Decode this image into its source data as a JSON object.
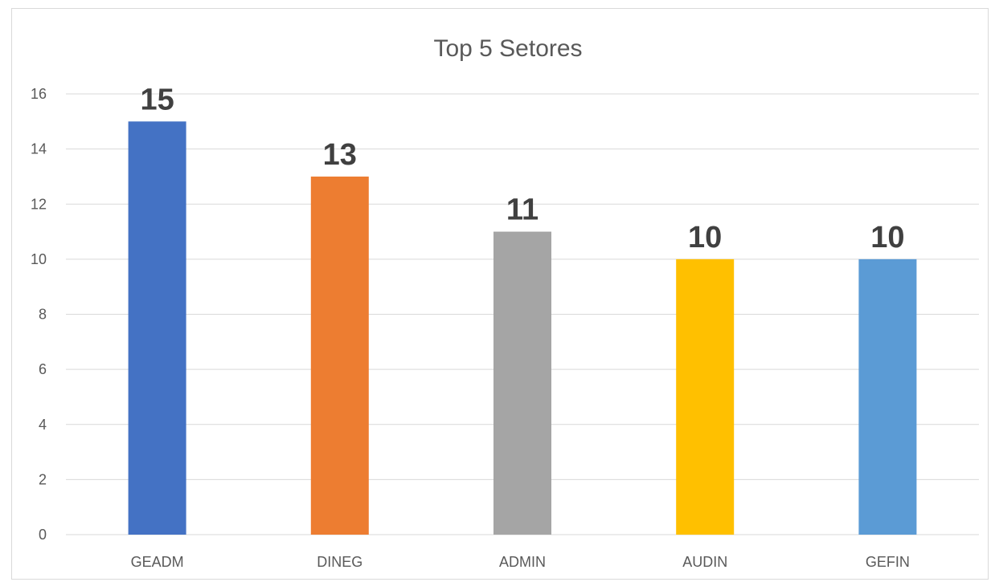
{
  "chart_data": {
    "type": "bar",
    "title": "Top 5 Setores",
    "xlabel": "",
    "ylabel": "",
    "ylim": [
      0,
      16
    ],
    "yticks": [
      0,
      2,
      4,
      6,
      8,
      10,
      12,
      14,
      16
    ],
    "grid": true,
    "legend": "none",
    "categories": [
      "GEADM",
      "DINEG",
      "ADMIN",
      "AUDIN",
      "GEFIN"
    ],
    "values": [
      15,
      13,
      11,
      10,
      10
    ],
    "data_labels": [
      "15",
      "13",
      "11",
      "10",
      "10"
    ],
    "colors": [
      "#4472c4",
      "#ed7d31",
      "#a5a5a5",
      "#ffc000",
      "#5b9bd5"
    ]
  }
}
